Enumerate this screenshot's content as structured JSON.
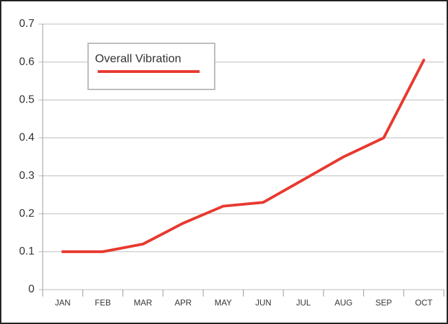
{
  "chart_data": {
    "type": "line",
    "categories": [
      "JAN",
      "FEB",
      "MAR",
      "APR",
      "MAY",
      "JUN",
      "JUL",
      "AUG",
      "SEP",
      "OCT"
    ],
    "series": [
      {
        "name": "Overall Vibration",
        "color": "#e8392f",
        "values": [
          0.1,
          0.1,
          0.12,
          0.175,
          0.22,
          0.23,
          0.29,
          0.35,
          0.4,
          0.605
        ]
      }
    ],
    "ylim": [
      0,
      0.7
    ],
    "yticks": [
      0,
      0.1,
      0.2,
      0.3,
      0.4,
      0.5,
      0.6,
      0.7
    ],
    "grid": true,
    "legend": "top-left"
  }
}
